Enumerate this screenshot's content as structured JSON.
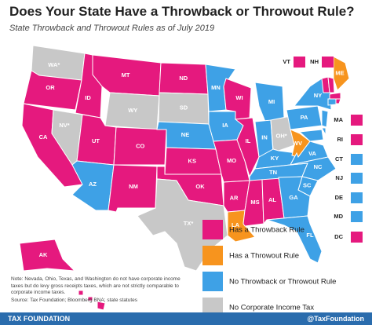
{
  "title": "Does Your State Have a Throwback or Throwout Rule?",
  "subtitle": "State Throwback and Throwout Rules as of July 2019",
  "legend": [
    {
      "label": "Has a Throwback Rule",
      "color": "#e5197e"
    },
    {
      "label": "Has a Throwout Rule",
      "color": "#f7941e"
    },
    {
      "label": "No Throwback or Throwout Rule",
      "color": "#3ea1e6"
    },
    {
      "label": "No Corporate Income Tax",
      "color": "#c8c8c8"
    }
  ],
  "states": [
    {
      "abbr": "WA*",
      "category": 3
    },
    {
      "abbr": "OR",
      "category": 0
    },
    {
      "abbr": "CA",
      "category": 0
    },
    {
      "abbr": "NV*",
      "category": 3
    },
    {
      "abbr": "ID",
      "category": 0
    },
    {
      "abbr": "MT",
      "category": 0
    },
    {
      "abbr": "WY",
      "category": 3
    },
    {
      "abbr": "UT",
      "category": 0
    },
    {
      "abbr": "CO",
      "category": 0
    },
    {
      "abbr": "AZ",
      "category": 2
    },
    {
      "abbr": "NM",
      "category": 0
    },
    {
      "abbr": "ND",
      "category": 0
    },
    {
      "abbr": "SD",
      "category": 3
    },
    {
      "abbr": "NE",
      "category": 2
    },
    {
      "abbr": "KS",
      "category": 0
    },
    {
      "abbr": "OK",
      "category": 0
    },
    {
      "abbr": "TX*",
      "category": 3
    },
    {
      "abbr": "MN",
      "category": 2
    },
    {
      "abbr": "IA",
      "category": 2
    },
    {
      "abbr": "MO",
      "category": 0
    },
    {
      "abbr": "AR",
      "category": 0
    },
    {
      "abbr": "LA",
      "category": 1
    },
    {
      "abbr": "WI",
      "category": 0
    },
    {
      "abbr": "IL",
      "category": 0
    },
    {
      "abbr": "MS",
      "category": 0
    },
    {
      "abbr": "AL",
      "category": 0
    },
    {
      "abbr": "MI",
      "category": 2
    },
    {
      "abbr": "IN",
      "category": 2
    },
    {
      "abbr": "OH*",
      "category": 3
    },
    {
      "abbr": "KY",
      "category": 2
    },
    {
      "abbr": "TN",
      "category": 2
    },
    {
      "abbr": "WV",
      "category": 1
    },
    {
      "abbr": "VA",
      "category": 2
    },
    {
      "abbr": "NC",
      "category": 2
    },
    {
      "abbr": "SC",
      "category": 2
    },
    {
      "abbr": "GA",
      "category": 2
    },
    {
      "abbr": "FL",
      "category": 2
    },
    {
      "abbr": "PA",
      "category": 2
    },
    {
      "abbr": "NY",
      "category": 2
    },
    {
      "abbr": "ME",
      "category": 1
    },
    {
      "abbr": "AK",
      "category": 0
    },
    {
      "abbr": "HI",
      "category": 0
    },
    {
      "abbr": "VT",
      "category": 0
    },
    {
      "abbr": "NH",
      "category": 0
    },
    {
      "abbr": "MA",
      "category": 0
    },
    {
      "abbr": "RI",
      "category": 0
    },
    {
      "abbr": "CT",
      "category": 2
    },
    {
      "abbr": "NJ",
      "category": 2
    },
    {
      "abbr": "DE",
      "category": 2
    },
    {
      "abbr": "MD",
      "category": 2
    },
    {
      "abbr": "DC",
      "category": 0
    }
  ],
  "note": "Note: Nevada, Ohio, Texas, and Washington do not have corporate income taxes but do levy gross receipts taxes, which are not strictly comparable to corporate income taxes.",
  "source": "Source: Tax Foundation; Bloomberg BNA; state statutes",
  "footer": {
    "left": "TAX FOUNDATION",
    "right": "@TaxFoundation"
  }
}
